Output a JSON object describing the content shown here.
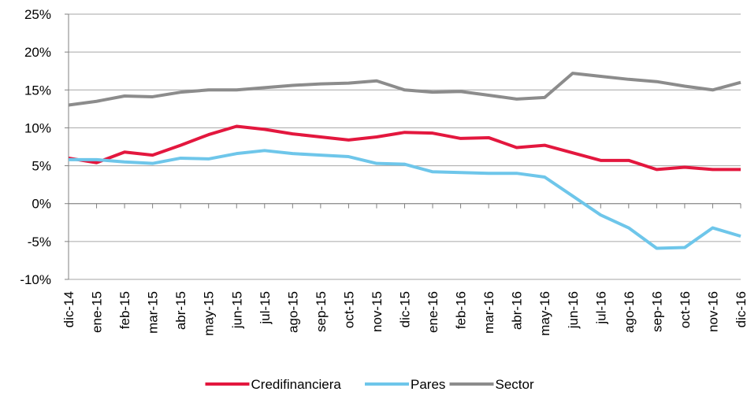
{
  "chart_data": {
    "type": "line",
    "categories": [
      "dic-14",
      "ene-15",
      "feb-15",
      "mar-15",
      "abr-15",
      "may-15",
      "jun-15",
      "jul-15",
      "ago-15",
      "sep-15",
      "oct-15",
      "nov-15",
      "dic-15",
      "ene-16",
      "feb-16",
      "mar-16",
      "abr-16",
      "may-16",
      "jun-16",
      "jul-16",
      "ago-16",
      "sep-16",
      "oct-16",
      "nov-16",
      "dic-16"
    ],
    "series": [
      {
        "name": "Credifinanciera",
        "color": "#e3173e",
        "values": [
          6.0,
          5.4,
          6.8,
          6.4,
          7.7,
          9.1,
          10.2,
          9.8,
          9.2,
          8.8,
          8.4,
          8.8,
          9.4,
          9.3,
          8.6,
          8.7,
          7.4,
          7.7,
          6.7,
          5.7,
          5.7,
          4.5,
          4.8,
          4.5,
          4.5
        ]
      },
      {
        "name": "Pares",
        "color": "#6ec6ea",
        "values": [
          5.8,
          5.8,
          5.5,
          5.3,
          6.0,
          5.9,
          6.6,
          7.0,
          6.6,
          6.4,
          6.2,
          5.3,
          5.2,
          4.2,
          4.1,
          4.0,
          4.0,
          3.5,
          1.0,
          -1.5,
          -3.2,
          -5.9,
          -5.8,
          -3.2,
          -4.3
        ]
      },
      {
        "name": "Sector",
        "color": "#8c8c8c",
        "values": [
          13.0,
          13.5,
          14.2,
          14.1,
          14.7,
          15.0,
          15.0,
          15.3,
          15.6,
          15.8,
          15.9,
          16.2,
          15.0,
          14.7,
          14.8,
          14.3,
          13.8,
          14.0,
          17.2,
          16.8,
          16.4,
          16.1,
          15.5,
          15.0,
          16.0
        ]
      }
    ],
    "ylim": [
      -10,
      25
    ],
    "yticks": [
      {
        "value": -10,
        "label": "-10%"
      },
      {
        "value": -5,
        "label": "-5%"
      },
      {
        "value": 0,
        "label": "0%"
      },
      {
        "value": 5,
        "label": "5%"
      },
      {
        "value": 10,
        "label": "10%"
      },
      {
        "value": 15,
        "label": "15%"
      },
      {
        "value": 20,
        "label": "20%"
      },
      {
        "value": 25,
        "label": "25%"
      }
    ],
    "grid": true,
    "legend": "bottom"
  }
}
